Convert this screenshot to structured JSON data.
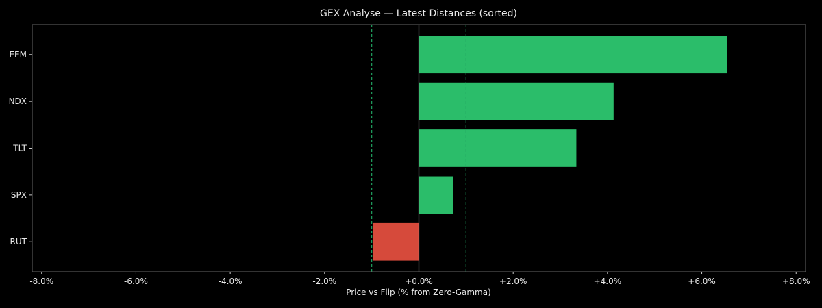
{
  "chart_data": {
    "type": "bar",
    "orientation": "horizontal",
    "title": "GEX Analyse — Latest Distances (sorted)",
    "xlabel": "Price vs Flip (% from Zero-Gamma)",
    "ylabel": "",
    "categories": [
      "EEM",
      "NDX",
      "TLT",
      "SPX",
      "RUT"
    ],
    "values": [
      6.54,
      4.13,
      3.34,
      0.72,
      -0.97
    ],
    "xlim": [
      -8.2,
      8.2
    ],
    "xticks": [
      -8,
      -6,
      -4,
      -2,
      0,
      2,
      4,
      6,
      8
    ],
    "xtick_labels": [
      "-8.0%",
      "-6.0%",
      "-4.0%",
      "-2.0%",
      "+0.0%",
      "+2.0%",
      "+4.0%",
      "+6.0%",
      "+8.0%"
    ],
    "reference_lines": [
      {
        "x": 0,
        "style": "solid",
        "color": "#aaaaaa"
      },
      {
        "x": -1.0,
        "style": "dashed",
        "color": "#1fa060"
      },
      {
        "x": 1.0,
        "style": "dashed",
        "color": "#1fa060"
      }
    ],
    "grid": false,
    "colors": {
      "positive": "#2bbd6a",
      "negative": "#d64a3b",
      "background": "#000000",
      "axes": "#666666"
    }
  }
}
